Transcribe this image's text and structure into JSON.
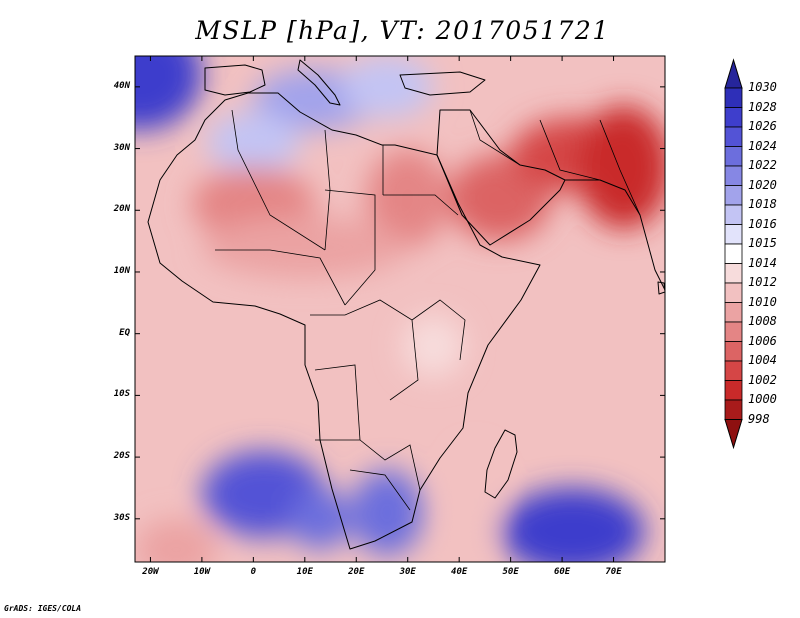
{
  "title": "MSLP [hPa], VT: 2017051721",
  "footer": "GrADS: IGES/COLA",
  "map": {
    "variable": "Mean sea level pressure",
    "units": "hPa",
    "valid_time": "2017051721",
    "lon_range": [
      -23,
      80
    ],
    "lat_range": [
      -37,
      45
    ],
    "lon_ticks": [
      {
        "value": -20,
        "label": "20W"
      },
      {
        "value": -10,
        "label": "10W"
      },
      {
        "value": 0,
        "label": "0"
      },
      {
        "value": 10,
        "label": "10E"
      },
      {
        "value": 20,
        "label": "20E"
      },
      {
        "value": 30,
        "label": "30E"
      },
      {
        "value": 40,
        "label": "40E"
      },
      {
        "value": 50,
        "label": "50E"
      },
      {
        "value": 60,
        "label": "60E"
      },
      {
        "value": 70,
        "label": "70E"
      }
    ],
    "lat_ticks": [
      {
        "value": 40,
        "label": "40N"
      },
      {
        "value": 30,
        "label": "30N"
      },
      {
        "value": 20,
        "label": "20N"
      },
      {
        "value": 10,
        "label": "10N"
      },
      {
        "value": 0,
        "label": "EQ"
      },
      {
        "value": -10,
        "label": "10S"
      },
      {
        "value": -20,
        "label": "20S"
      },
      {
        "value": -30,
        "label": "30S"
      }
    ],
    "field_features": [
      {
        "name": "north-atlantic-high",
        "lon": -22,
        "lat": 42,
        "value": 1026,
        "rx": 12,
        "ry": 9
      },
      {
        "name": "mediterranean-ridge",
        "lon": 12,
        "lat": 38,
        "value": 1019,
        "rx": 12,
        "ry": 5
      },
      {
        "name": "balkan-ridge",
        "lon": 26,
        "lat": 40,
        "value": 1017,
        "rx": 9,
        "ry": 5
      },
      {
        "name": "morocco-ridge",
        "lon": 0,
        "lat": 31,
        "value": 1016,
        "rx": 9,
        "ry": 5
      },
      {
        "name": "saharan-low",
        "lon": 0,
        "lat": 21,
        "value": 1007,
        "rx": 12,
        "ry": 6
      },
      {
        "name": "egypt-sudan-low",
        "lon": 30,
        "lat": 22,
        "value": 1007,
        "rx": 8,
        "ry": 8
      },
      {
        "name": "arabian-low",
        "lon": 48,
        "lat": 22,
        "value": 1005,
        "rx": 10,
        "ry": 7
      },
      {
        "name": "persian-low",
        "lon": 62,
        "lat": 29,
        "value": 1002,
        "rx": 12,
        "ry": 6
      },
      {
        "name": "pakistan-low",
        "lon": 72,
        "lat": 27,
        "value": 1001,
        "rx": 9,
        "ry": 10
      },
      {
        "name": "sahel-trough",
        "lon": 10,
        "lat": 14,
        "value": 1009,
        "rx": 20,
        "ry": 5
      },
      {
        "name": "east-africa-rise",
        "lon": 35,
        "lat": -2,
        "value": 1012,
        "rx": 6,
        "ry": 5
      },
      {
        "name": "south-atlantic-high",
        "lon": 2,
        "lat": -26,
        "value": 1024,
        "rx": 12,
        "ry": 7
      },
      {
        "name": "benguela-ridge",
        "lon": 13,
        "lat": -30,
        "value": 1022,
        "rx": 6,
        "ry": 5
      },
      {
        "name": "south-african-high",
        "lon": 26,
        "lat": -29,
        "value": 1022,
        "rx": 7,
        "ry": 7
      },
      {
        "name": "mascarene-high",
        "lon": 62,
        "lat": -32,
        "value": 1026,
        "rx": 14,
        "ry": 7
      },
      {
        "name": "mozambique-channel-low",
        "lon": 43,
        "lat": -27,
        "value": 1011,
        "rx": 4,
        "ry": 8
      },
      {
        "name": "southwest-low",
        "lon": -15,
        "lat": -35,
        "value": 1009,
        "rx": 8,
        "ry": 5
      }
    ]
  },
  "colorbar": {
    "levels": [
      1030,
      1028,
      1026,
      1024,
      1022,
      1020,
      1018,
      1016,
      1015,
      1014,
      1012,
      1010,
      1008,
      1006,
      1004,
      1002,
      1000,
      998
    ],
    "colors": [
      "#26259b",
      "#2e2fb8",
      "#3e3ecc",
      "#5353d6",
      "#6c6edd",
      "#8687e4",
      "#a2a3eb",
      "#c3c4f4",
      "#e2e3fb",
      "#ffffff",
      "#f7dcdc",
      "#f2c1c1",
      "#eba3a3",
      "#e48585",
      "#dc6464",
      "#d54646",
      "#c92a2a",
      "#a81b1b",
      "#8e1010"
    ]
  }
}
